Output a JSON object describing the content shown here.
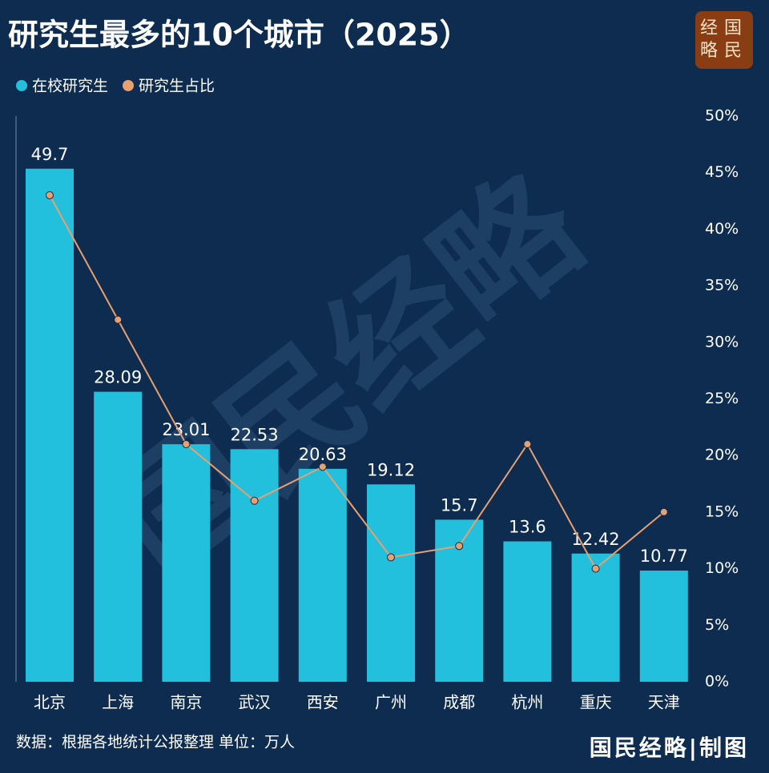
{
  "chart_data": {
    "type": "combo",
    "title": "研究生最多的10个城市（2025）",
    "logo": [
      "经国",
      "略民"
    ],
    "watermark": "国民经略",
    "source": "数据：根据各地统计公报整理 单位：万人",
    "credit": "国民经略|制图",
    "legend": "top-left",
    "categories": [
      "北京",
      "上海",
      "南京",
      "武汉",
      "西安",
      "广州",
      "成都",
      "杭州",
      "重庆",
      "天津"
    ],
    "series": [
      {
        "name": "在校研究生",
        "type": "bar",
        "color": "#22c0dc",
        "values": [
          49.7,
          28.09,
          23.01,
          22.53,
          20.63,
          19.12,
          15.7,
          13.6,
          12.42,
          10.77
        ]
      },
      {
        "name": "研究生占比",
        "type": "line",
        "color": "#e8a070",
        "axis": "y2",
        "values": [
          43,
          32,
          21,
          16,
          19,
          11,
          12,
          21,
          10,
          15
        ]
      }
    ],
    "ylim": [
      0,
      54.8
    ],
    "y2lim": [
      0,
      50
    ],
    "y2ticks": [
      {
        "value": 0,
        "label": "0%"
      },
      {
        "value": 5,
        "label": "5%"
      },
      {
        "value": 10,
        "label": "10%"
      },
      {
        "value": 15,
        "label": "15%"
      },
      {
        "value": 20,
        "label": "20%"
      },
      {
        "value": 25,
        "label": "25%"
      },
      {
        "value": 30,
        "label": "30%"
      },
      {
        "value": 35,
        "label": "35%"
      },
      {
        "value": 40,
        "label": "40%"
      },
      {
        "value": 45,
        "label": "45%"
      },
      {
        "value": 50,
        "label": "50%"
      }
    ]
  }
}
